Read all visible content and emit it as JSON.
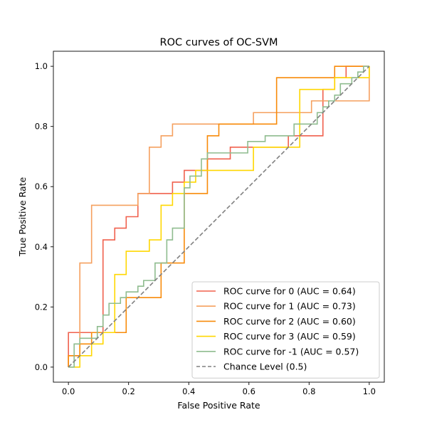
{
  "chart_data": {
    "type": "line",
    "title": "ROC curves of OC-SVM",
    "xlabel": "False Positive Rate",
    "ylabel": "True Positive Rate",
    "xlim": [
      -0.05,
      1.05
    ],
    "ylim": [
      -0.05,
      1.05
    ],
    "xticks": [
      "0.0",
      "0.2",
      "0.4",
      "0.6",
      "0.8",
      "1.0"
    ],
    "yticks": [
      "0.0",
      "0.2",
      "0.4",
      "0.6",
      "0.8",
      "1.0"
    ],
    "grid": false,
    "legend_position": "lower-right",
    "series": [
      {
        "name": "ROC curve for 0 (AUC = 0.64)",
        "color": "#f0604d",
        "points": [
          [
            0,
            0
          ],
          [
            0,
            0.115
          ],
          [
            0.115,
            0.115
          ],
          [
            0.115,
            0.423
          ],
          [
            0.154,
            0.423
          ],
          [
            0.154,
            0.462
          ],
          [
            0.192,
            0.462
          ],
          [
            0.192,
            0.5
          ],
          [
            0.231,
            0.5
          ],
          [
            0.231,
            0.577
          ],
          [
            0.346,
            0.577
          ],
          [
            0.346,
            0.615
          ],
          [
            0.385,
            0.615
          ],
          [
            0.385,
            0.654
          ],
          [
            0.462,
            0.654
          ],
          [
            0.462,
            0.692
          ],
          [
            0.5,
            0.692
          ],
          [
            0.5,
            0.692
          ],
          [
            0.538,
            0.692
          ],
          [
            0.538,
            0.731
          ],
          [
            0.615,
            0.731
          ],
          [
            0.615,
            0.731
          ],
          [
            0.731,
            0.731
          ],
          [
            0.731,
            0.769
          ],
          [
            0.846,
            0.769
          ],
          [
            0.846,
            0.923
          ],
          [
            0.885,
            0.923
          ],
          [
            0.885,
            0.962
          ],
          [
            0.923,
            0.962
          ],
          [
            0.923,
            1.0
          ],
          [
            1.0,
            1.0
          ]
        ]
      },
      {
        "name": "ROC curve for 1 (AUC = 0.73)",
        "color": "#f5a05f",
        "points": [
          [
            0,
            0
          ],
          [
            0,
            0.038
          ],
          [
            0.038,
            0.038
          ],
          [
            0.038,
            0.346
          ],
          [
            0.077,
            0.346
          ],
          [
            0.077,
            0.538
          ],
          [
            0.231,
            0.538
          ],
          [
            0.231,
            0.577
          ],
          [
            0.269,
            0.577
          ],
          [
            0.269,
            0.731
          ],
          [
            0.308,
            0.731
          ],
          [
            0.308,
            0.769
          ],
          [
            0.346,
            0.769
          ],
          [
            0.346,
            0.808
          ],
          [
            0.615,
            0.808
          ],
          [
            0.615,
            0.846
          ],
          [
            0.808,
            0.846
          ],
          [
            0.808,
            0.885
          ],
          [
            1.0,
            0.885
          ],
          [
            1.0,
            1.0
          ]
        ]
      },
      {
        "name": "ROC curve for 2 (AUC = 0.60)",
        "color": "#f88b0a",
        "points": [
          [
            0,
            0
          ],
          [
            0,
            0.038
          ],
          [
            0.038,
            0.038
          ],
          [
            0.038,
            0.077
          ],
          [
            0.077,
            0.077
          ],
          [
            0.077,
            0.115
          ],
          [
            0.192,
            0.115
          ],
          [
            0.192,
            0.231
          ],
          [
            0.308,
            0.231
          ],
          [
            0.308,
            0.346
          ],
          [
            0.385,
            0.346
          ],
          [
            0.385,
            0.577
          ],
          [
            0.462,
            0.577
          ],
          [
            0.462,
            0.769
          ],
          [
            0.5,
            0.769
          ],
          [
            0.5,
            0.808
          ],
          [
            0.692,
            0.808
          ],
          [
            0.692,
            0.962
          ],
          [
            0.885,
            0.962
          ],
          [
            0.885,
            1.0
          ],
          [
            1.0,
            1.0
          ]
        ]
      },
      {
        "name": "ROC curve for 3 (AUC = 0.59)",
        "color": "#ffd700",
        "points": [
          [
            0,
            0
          ],
          [
            0.038,
            0
          ],
          [
            0.038,
            0.038
          ],
          [
            0.077,
            0.038
          ],
          [
            0.077,
            0.077
          ],
          [
            0.115,
            0.077
          ],
          [
            0.115,
            0.115
          ],
          [
            0.154,
            0.115
          ],
          [
            0.154,
            0.308
          ],
          [
            0.192,
            0.308
          ],
          [
            0.192,
            0.385
          ],
          [
            0.269,
            0.385
          ],
          [
            0.269,
            0.423
          ],
          [
            0.308,
            0.423
          ],
          [
            0.308,
            0.538
          ],
          [
            0.346,
            0.538
          ],
          [
            0.346,
            0.577
          ],
          [
            0.385,
            0.577
          ],
          [
            0.385,
            0.615
          ],
          [
            0.423,
            0.615
          ],
          [
            0.423,
            0.654
          ],
          [
            0.615,
            0.654
          ],
          [
            0.615,
            0.731
          ],
          [
            0.769,
            0.731
          ],
          [
            0.769,
            0.923
          ],
          [
            0.885,
            0.923
          ],
          [
            0.885,
            0.962
          ],
          [
            1.0,
            0.962
          ],
          [
            1.0,
            1.0
          ]
        ]
      },
      {
        "name": "ROC curve for -1 (AUC = 0.57)",
        "color": "#8fbc8f",
        "points": [
          [
            0,
            0
          ],
          [
            0.019,
            0
          ],
          [
            0.019,
            0.077
          ],
          [
            0.038,
            0.077
          ],
          [
            0.038,
            0.096
          ],
          [
            0.096,
            0.096
          ],
          [
            0.096,
            0.135
          ],
          [
            0.115,
            0.135
          ],
          [
            0.115,
            0.173
          ],
          [
            0.135,
            0.173
          ],
          [
            0.135,
            0.212
          ],
          [
            0.173,
            0.212
          ],
          [
            0.173,
            0.231
          ],
          [
            0.192,
            0.231
          ],
          [
            0.192,
            0.25
          ],
          [
            0.231,
            0.25
          ],
          [
            0.231,
            0.269
          ],
          [
            0.25,
            0.269
          ],
          [
            0.25,
            0.288
          ],
          [
            0.288,
            0.288
          ],
          [
            0.288,
            0.346
          ],
          [
            0.327,
            0.346
          ],
          [
            0.327,
            0.423
          ],
          [
            0.346,
            0.423
          ],
          [
            0.346,
            0.462
          ],
          [
            0.385,
            0.462
          ],
          [
            0.385,
            0.596
          ],
          [
            0.404,
            0.596
          ],
          [
            0.404,
            0.635
          ],
          [
            0.442,
            0.635
          ],
          [
            0.442,
            0.692
          ],
          [
            0.462,
            0.692
          ],
          [
            0.462,
            0.712
          ],
          [
            0.596,
            0.712
          ],
          [
            0.596,
            0.75
          ],
          [
            0.654,
            0.75
          ],
          [
            0.654,
            0.769
          ],
          [
            0.75,
            0.769
          ],
          [
            0.75,
            0.808
          ],
          [
            0.827,
            0.808
          ],
          [
            0.827,
            0.846
          ],
          [
            0.846,
            0.846
          ],
          [
            0.846,
            0.865
          ],
          [
            0.865,
            0.865
          ],
          [
            0.865,
            0.885
          ],
          [
            0.885,
            0.885
          ],
          [
            0.885,
            0.904
          ],
          [
            0.904,
            0.904
          ],
          [
            0.904,
            0.942
          ],
          [
            0.942,
            0.942
          ],
          [
            0.942,
            0.962
          ],
          [
            0.962,
            0.962
          ],
          [
            0.962,
            0.981
          ],
          [
            0.981,
            0.981
          ],
          [
            0.981,
            1.0
          ],
          [
            1.0,
            1.0
          ]
        ]
      }
    ],
    "reference_line": {
      "name": "Chance Level (0.5)",
      "color": "#808080",
      "points": [
        [
          0,
          0
        ],
        [
          1,
          1
        ]
      ]
    }
  }
}
